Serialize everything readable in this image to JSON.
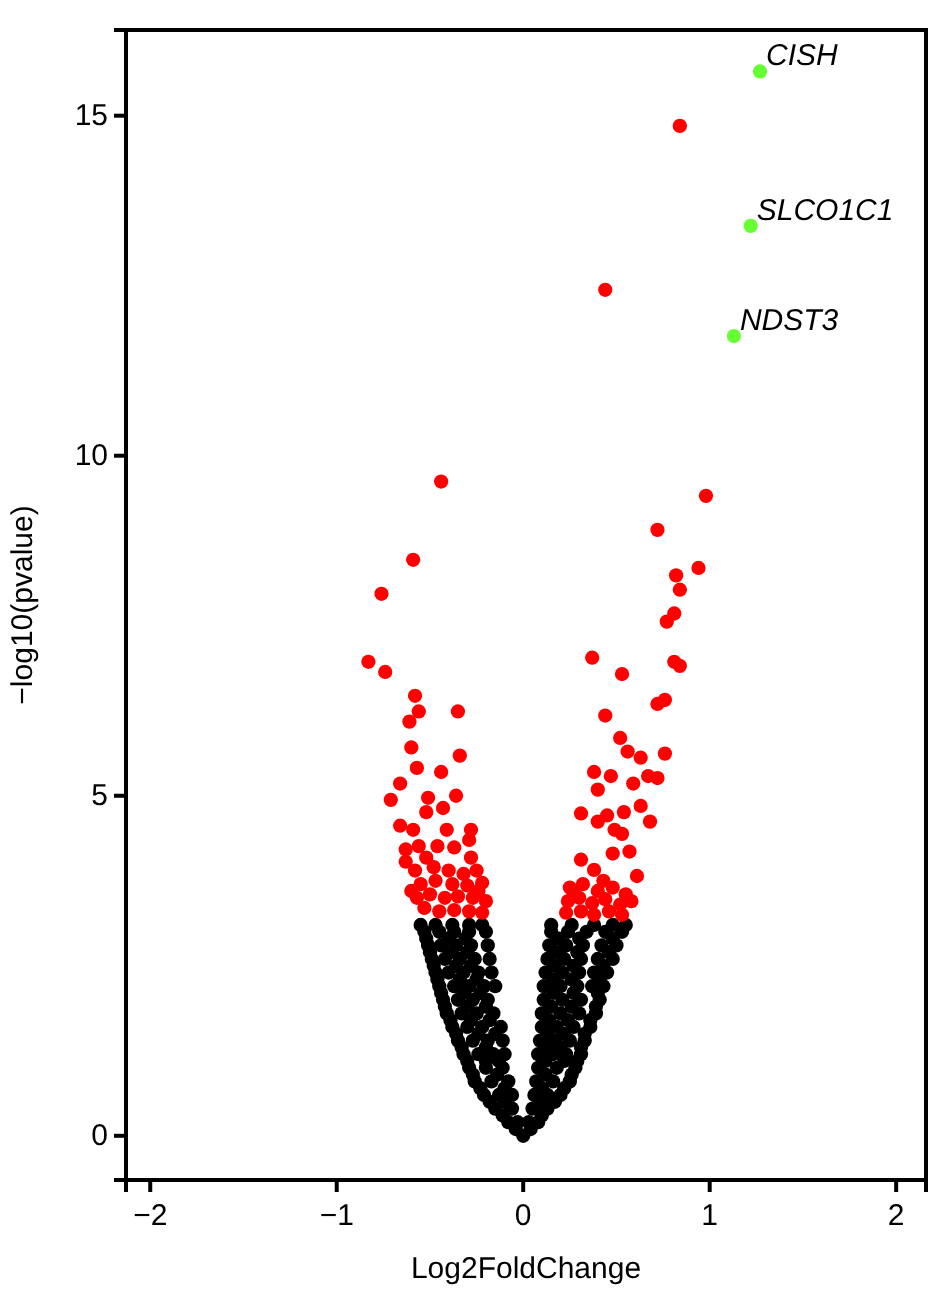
{
  "chart_data": {
    "type": "scatter",
    "xlabel": "Log2FoldChange",
    "ylabel": "−log10(pvalue)",
    "xlim": [
      -2.13,
      2.16
    ],
    "ylim": [
      -0.65,
      16.26
    ],
    "xticks": [
      {
        "value": -2,
        "label": "−2"
      },
      {
        "value": -1,
        "label": "−1"
      },
      0,
      1,
      2
    ],
    "yticks": [
      0,
      5,
      10,
      15
    ],
    "marker": "circle",
    "series": [
      {
        "color": "#000000",
        "x": [
          0,
          -0.04,
          0.04,
          -0.08,
          -0.03,
          0.03,
          0.08,
          -0.11,
          0.1,
          -0.15,
          -0.06,
          0.05,
          0.13,
          -0.18,
          -0.1,
          0.09,
          0.17,
          -0.21,
          -0.13,
          -0.06,
          0.06,
          0.13,
          0.2,
          -0.23,
          -0.1,
          0.1,
          0.22,
          -0.26,
          -0.17,
          -0.08,
          0.07,
          0.16,
          0.25,
          -0.27,
          -0.14,
          0.12,
          0.26,
          -0.29,
          -0.2,
          -0.11,
          0.08,
          0.18,
          0.28,
          -0.3,
          -0.2,
          -0.13,
          0.12,
          0.22,
          0.29,
          -0.32,
          -0.24,
          -0.16,
          -0.1,
          0.08,
          0.16,
          0.23,
          0.31,
          -0.33,
          -0.2,
          0.12,
          0.2,
          0.31,
          -0.35,
          -0.27,
          -0.19,
          -0.11,
          0.09,
          0.17,
          0.25,
          0.33,
          -0.36,
          -0.24,
          -0.15,
          0.13,
          0.22,
          0.33,
          -0.38,
          -0.3,
          -0.22,
          -0.12,
          0.1,
          0.18,
          0.27,
          0.36,
          -0.39,
          -0.28,
          -0.18,
          0.14,
          0.24,
          0.36,
          -0.41,
          -0.33,
          -0.25,
          -0.16,
          0.1,
          0.2,
          0.3,
          0.39,
          -0.42,
          -0.3,
          -0.2,
          0.15,
          0.26,
          0.39,
          -0.43,
          -0.35,
          -0.27,
          -0.19,
          0.11,
          0.21,
          0.31,
          0.41,
          -0.44,
          -0.32,
          -0.23,
          0.16,
          0.27,
          0.4,
          -0.45,
          -0.37,
          -0.29,
          -0.21,
          -0.15,
          0.11,
          0.2,
          0.29,
          0.37,
          0.43,
          -0.46,
          -0.34,
          -0.25,
          0.16,
          0.26,
          0.41,
          -0.47,
          -0.4,
          -0.32,
          -0.24,
          -0.17,
          0.12,
          0.21,
          0.3,
          0.38,
          0.45,
          -0.48,
          -0.36,
          -0.28,
          0.17,
          0.27,
          0.43,
          -0.49,
          -0.42,
          -0.34,
          -0.26,
          -0.18,
          0.13,
          0.22,
          0.31,
          0.4,
          0.48,
          -0.5,
          -0.39,
          -0.3,
          0.18,
          0.29,
          0.46,
          -0.51,
          -0.44,
          -0.36,
          -0.28,
          -0.19,
          0.14,
          0.23,
          0.32,
          0.42,
          0.5,
          -0.52,
          -0.4,
          -0.31,
          0.19,
          0.3,
          0.48,
          -0.53,
          -0.45,
          -0.37,
          -0.29,
          -0.2,
          0.15,
          0.24,
          0.34,
          0.44,
          0.53,
          -0.55,
          -0.47,
          -0.38,
          -0.29,
          -0.22,
          0.15,
          0.26,
          0.38,
          0.48,
          0.55
        ],
        "values": [
          0,
          0.1,
          0.1,
          0.2,
          0.2,
          0.2,
          0.2,
          0.3,
          0.3,
          0.4,
          0.4,
          0.4,
          0.4,
          0.5,
          0.5,
          0.5,
          0.5,
          0.6,
          0.6,
          0.6,
          0.6,
          0.6,
          0.6,
          0.7,
          0.7,
          0.7,
          0.7,
          0.8,
          0.8,
          0.8,
          0.8,
          0.8,
          0.8,
          0.9,
          0.9,
          0.9,
          0.9,
          1.0,
          1.0,
          1.0,
          1.0,
          1.0,
          1.0,
          1.1,
          1.1,
          1.1,
          1.1,
          1.1,
          1.1,
          1.2,
          1.2,
          1.2,
          1.2,
          1.2,
          1.2,
          1.2,
          1.2,
          1.3,
          1.3,
          1.3,
          1.3,
          1.3,
          1.4,
          1.4,
          1.4,
          1.4,
          1.4,
          1.4,
          1.4,
          1.4,
          1.5,
          1.5,
          1.5,
          1.5,
          1.5,
          1.5,
          1.6,
          1.6,
          1.6,
          1.6,
          1.6,
          1.6,
          1.6,
          1.6,
          1.7,
          1.7,
          1.7,
          1.7,
          1.7,
          1.7,
          1.8,
          1.8,
          1.8,
          1.8,
          1.8,
          1.8,
          1.8,
          1.8,
          1.9,
          1.9,
          1.9,
          1.9,
          1.9,
          1.9,
          2.0,
          2.0,
          2.0,
          2.0,
          2.0,
          2.0,
          2.0,
          2.0,
          2.1,
          2.1,
          2.1,
          2.1,
          2.1,
          2.1,
          2.2,
          2.2,
          2.2,
          2.2,
          2.2,
          2.2,
          2.2,
          2.2,
          2.2,
          2.2,
          2.3,
          2.3,
          2.3,
          2.3,
          2.3,
          2.3,
          2.4,
          2.4,
          2.4,
          2.4,
          2.4,
          2.4,
          2.4,
          2.4,
          2.4,
          2.4,
          2.5,
          2.5,
          2.5,
          2.5,
          2.5,
          2.5,
          2.6,
          2.6,
          2.6,
          2.6,
          2.6,
          2.6,
          2.6,
          2.6,
          2.6,
          2.6,
          2.7,
          2.7,
          2.7,
          2.7,
          2.7,
          2.7,
          2.8,
          2.8,
          2.8,
          2.8,
          2.8,
          2.8,
          2.8,
          2.8,
          2.8,
          2.8,
          2.9,
          2.9,
          2.9,
          2.9,
          2.9,
          2.9,
          3.0,
          3.0,
          3.0,
          3.0,
          3.0,
          3.0,
          3.0,
          3.0,
          3.0,
          3.0,
          3.1,
          3.1,
          3.1,
          3.1,
          3.1,
          3.1,
          3.1,
          3.1,
          3.1,
          3.1
        ]
      },
      {
        "color": "#ff0000",
        "x": [
          -0.44,
          -0.59,
          -0.76,
          -0.83,
          -0.74,
          -0.58,
          -0.56,
          -0.35,
          -0.61,
          -0.6,
          -0.34,
          -0.57,
          -0.44,
          -0.66,
          -0.36,
          -0.71,
          -0.51,
          -0.52,
          -0.43,
          -0.66,
          -0.59,
          -0.41,
          -0.28,
          -0.56,
          -0.46,
          -0.29,
          -0.63,
          -0.37,
          -0.28,
          -0.52,
          -0.63,
          -0.58,
          -0.48,
          -0.4,
          -0.32,
          -0.25,
          -0.55,
          -0.47,
          -0.38,
          -0.3,
          -0.22,
          -0.57,
          -0.5,
          -0.42,
          -0.35,
          -0.27,
          -0.2,
          -0.53,
          -0.45,
          -0.37,
          -0.29,
          -0.22,
          -0.6,
          -0.24,
          0.84,
          0.44,
          0.98,
          0.72,
          0.94,
          0.82,
          0.84,
          0.81,
          0.77,
          0.37,
          0.81,
          0.84,
          0.53,
          0.76,
          0.72,
          0.44,
          0.52,
          0.56,
          0.63,
          0.76,
          0.38,
          0.47,
          0.67,
          0.59,
          0.72,
          0.4,
          0.63,
          0.31,
          0.54,
          0.68,
          0.4,
          0.45,
          0.49,
          0.53,
          0.31,
          0.57,
          0.38,
          0.61,
          0.48,
          0.25,
          0.32,
          0.4,
          0.48,
          0.55,
          0.24,
          0.3,
          0.37,
          0.44,
          0.52,
          0.58,
          0.23,
          0.31,
          0.38,
          0.46,
          0.53,
          0.27,
          0.43
        ],
        "values": [
          9.62,
          8.47,
          7.97,
          6.97,
          6.82,
          6.47,
          6.24,
          6.24,
          6.09,
          5.71,
          5.59,
          5.41,
          5.35,
          5.18,
          5.0,
          4.94,
          4.97,
          4.76,
          4.82,
          4.56,
          4.5,
          4.5,
          4.5,
          4.26,
          4.26,
          4.35,
          4.21,
          4.24,
          4.09,
          4.09,
          4.03,
          3.9,
          3.95,
          3.9,
          3.85,
          3.9,
          3.7,
          3.75,
          3.7,
          3.68,
          3.72,
          3.5,
          3.55,
          3.5,
          3.52,
          3.5,
          3.45,
          3.35,
          3.3,
          3.32,
          3.3,
          3.28,
          3.6,
          3.6,
          14.85,
          12.44,
          9.41,
          8.91,
          8.35,
          8.24,
          8.03,
          7.68,
          7.56,
          7.03,
          6.97,
          6.91,
          6.79,
          6.41,
          6.35,
          6.18,
          5.85,
          5.65,
          5.56,
          5.62,
          5.35,
          5.29,
          5.29,
          5.18,
          5.26,
          5.09,
          4.85,
          4.74,
          4.76,
          4.62,
          4.62,
          4.71,
          4.5,
          4.44,
          4.06,
          4.18,
          3.91,
          3.82,
          4.15,
          3.65,
          3.7,
          3.6,
          3.65,
          3.55,
          3.45,
          3.5,
          3.42,
          3.48,
          3.4,
          3.45,
          3.28,
          3.3,
          3.25,
          3.3,
          3.25,
          3.58,
          3.75
        ]
      },
      {
        "color": "#66ff33",
        "x": [
          1.27,
          1.22,
          1.13
        ],
        "values": [
          15.65,
          13.38,
          11.76
        ]
      }
    ],
    "annotations": [
      {
        "text": "CISH",
        "x": 1.27,
        "y": 15.65
      },
      {
        "text": "SLCO1C1",
        "x": 1.22,
        "y": 13.38
      },
      {
        "text": "NDST3",
        "x": 1.13,
        "y": 11.76
      }
    ]
  }
}
